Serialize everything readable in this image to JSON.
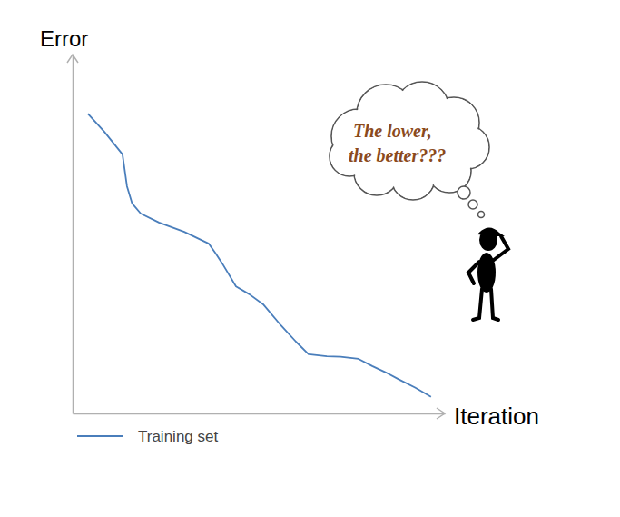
{
  "chart_data": {
    "type": "line",
    "x_label": "Iteration",
    "y_label": "Error",
    "annotation": [
      "The lower,",
      "the better???"
    ],
    "x": [
      4.1,
      8.5,
      13.4,
      14.6,
      16.0,
      18.3,
      23.2,
      30.0,
      36.6,
      38.5,
      40.2,
      43.9,
      47.5,
      51.2,
      56.0,
      60.0,
      63.4,
      68.3,
      72.0,
      76.8,
      80.5,
      84.0,
      87.8,
      92.0,
      96.3
    ],
    "series": [
      {
        "name": "Training set",
        "color": "#4a7ebb",
        "values": [
          83.5,
          78.5,
          72.2,
          63.3,
          58.5,
          55.7,
          53.2,
          50.6,
          47.3,
          44.5,
          41.8,
          35.4,
          33.2,
          30.4,
          24.5,
          20.0,
          16.5,
          15.9,
          15.8,
          15.2,
          13.2,
          11.5,
          9.4,
          7.2,
          4.6
        ]
      }
    ],
    "xlim": [
      0,
      100
    ],
    "ylim": [
      0,
      100
    ],
    "xticks": [],
    "yticks": [],
    "tick_labels": false,
    "legend": "bottom"
  }
}
